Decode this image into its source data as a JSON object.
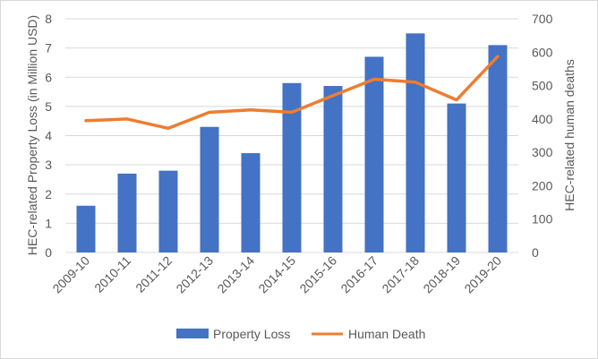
{
  "chart_data": {
    "type": "bar",
    "categories": [
      "2009-10",
      "2010-11",
      "2011-12",
      "2012-13",
      "2013-14",
      "2014-15",
      "2015-16",
      "2016-17",
      "2017-18",
      "2018-19",
      "2019-20"
    ],
    "series": [
      {
        "name": "Property Loss",
        "type": "bar",
        "axis": "left",
        "values": [
          1.6,
          2.7,
          2.8,
          4.3,
          3.4,
          5.8,
          5.7,
          6.7,
          7.5,
          5.1,
          7.1
        ],
        "color": "#4472c4"
      },
      {
        "name": "Human Death",
        "type": "line",
        "axis": "right",
        "values": [
          395,
          400,
          372,
          420,
          427,
          420,
          470,
          519,
          510,
          457,
          587
        ],
        "color": "#ed7d31"
      }
    ],
    "ylabel": "HEC-related Property Loss (in Million USD)",
    "y2label": "HEC-related human deaths",
    "ylim": [
      0,
      8
    ],
    "y2lim": [
      0,
      700
    ],
    "yticks": [
      "0",
      "1",
      "2",
      "3",
      "4",
      "5",
      "6",
      "7",
      "8"
    ],
    "y2ticks": [
      "0",
      "100",
      "200",
      "300",
      "400",
      "500",
      "600",
      "700"
    ],
    "grid": true,
    "legend_position": "bottom"
  }
}
